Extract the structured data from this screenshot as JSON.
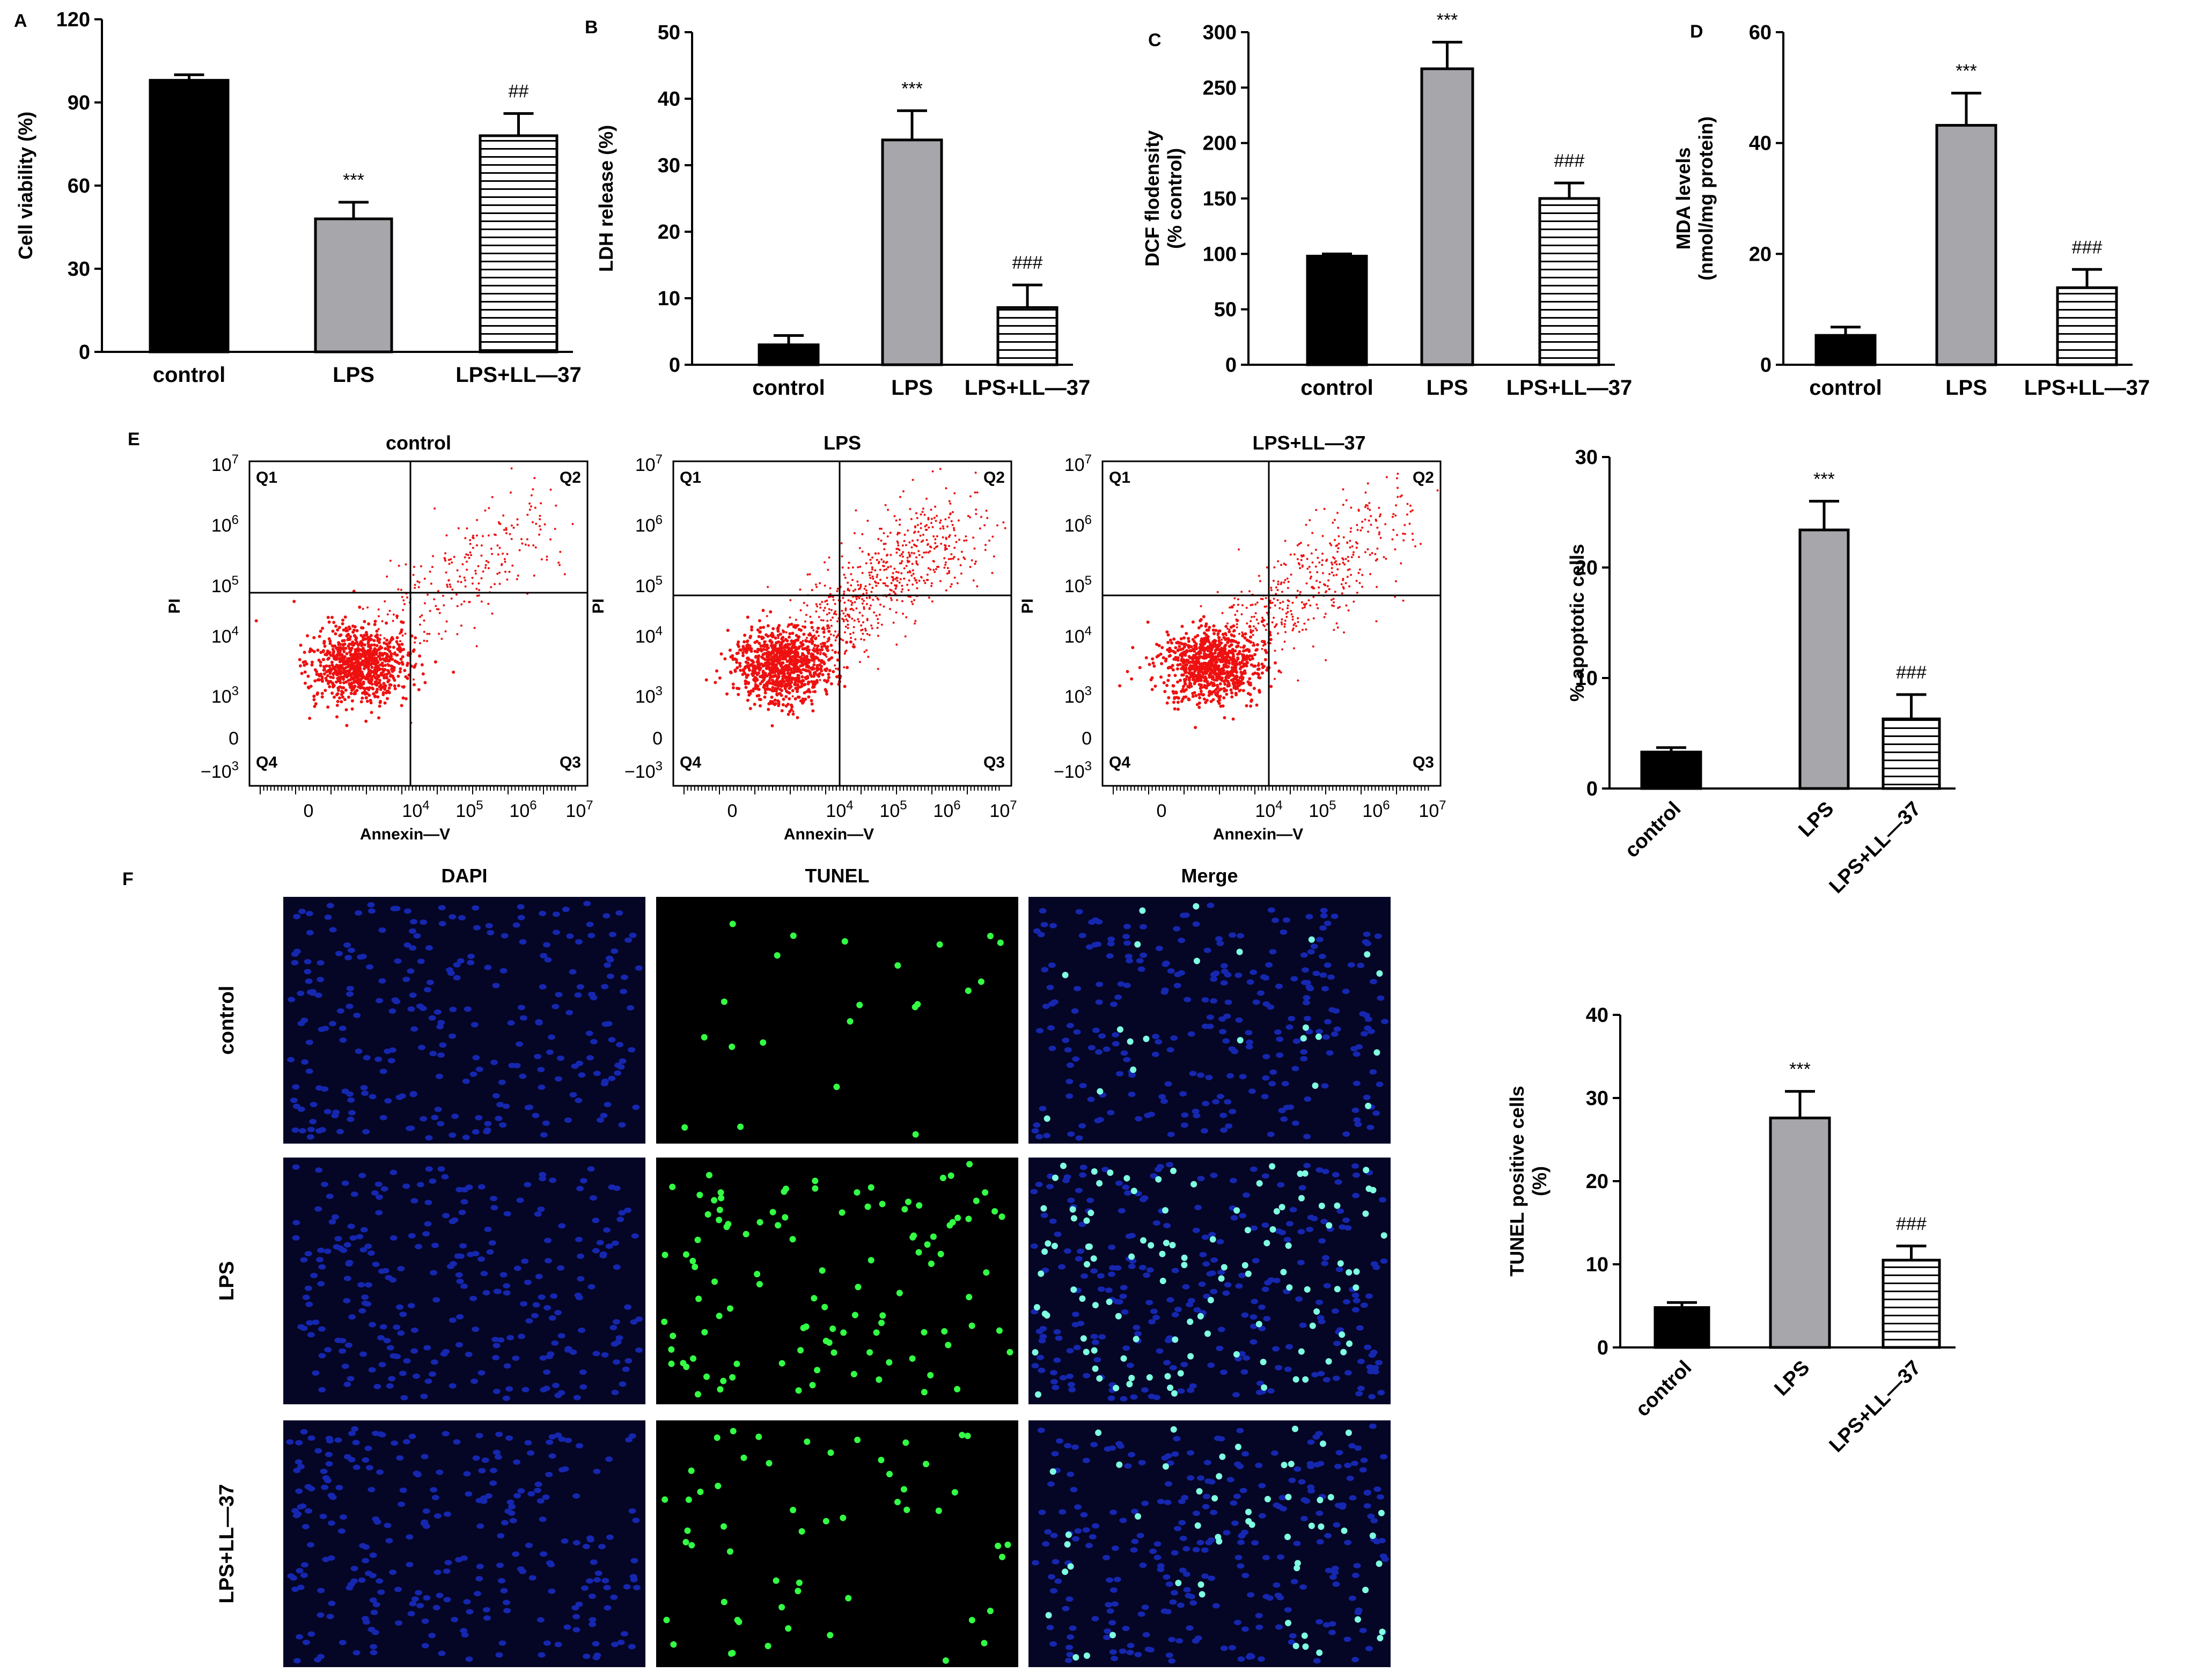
{
  "panel_letters": [
    "A",
    "B",
    "C",
    "D",
    "E",
    "F"
  ],
  "colors": {
    "control": "#000000",
    "lps": "#a6a6ab",
    "hatch": "#000000",
    "scatter": "#ee1111"
  },
  "chart_data": [
    {
      "id": "A",
      "type": "bar",
      "categories": [
        "control",
        "LPS",
        "LPS+LL—37"
      ],
      "values": [
        98,
        48,
        78
      ],
      "errors": [
        2,
        6,
        8
      ],
      "ylabel": "Cell viability (%)",
      "ylim": [
        0,
        120
      ],
      "yticks": [
        0,
        30,
        60,
        90,
        120
      ],
      "annotations": [
        "",
        "***",
        "##"
      ]
    },
    {
      "id": "B",
      "type": "bar",
      "categories": [
        "control",
        "LPS",
        "LPS+LL—37"
      ],
      "values": [
        3,
        33.8,
        8.6
      ],
      "errors": [
        1.4,
        4.4,
        3.4
      ],
      "ylabel": "LDH release (%)",
      "ylim": [
        0,
        50
      ],
      "yticks": [
        0,
        10,
        20,
        30,
        40,
        50
      ],
      "annotations": [
        "",
        "***",
        "###"
      ]
    },
    {
      "id": "C",
      "type": "bar",
      "categories": [
        "control",
        "LPS",
        "LPS+LL—37"
      ],
      "values": [
        98,
        267,
        150
      ],
      "errors": [
        2,
        24,
        14
      ],
      "ylabel": "DCF flodensity",
      "ylabel2": "(% control)",
      "ylim": [
        0,
        300
      ],
      "yticks": [
        0,
        50,
        100,
        150,
        200,
        250,
        300
      ],
      "annotations": [
        "",
        "***",
        "###"
      ]
    },
    {
      "id": "D",
      "type": "bar",
      "categories": [
        "control",
        "LPS",
        "LPS+LL—37"
      ],
      "values": [
        5.3,
        43.2,
        13.9
      ],
      "errors": [
        1.5,
        5.8,
        3.3
      ],
      "ylabel": "MDA levels",
      "ylabel2": "(nmol/mg protein)",
      "ylim": [
        0,
        60
      ],
      "yticks": [
        0,
        20,
        40,
        60
      ],
      "annotations": [
        "",
        "***",
        "###"
      ]
    },
    {
      "id": "E-bar",
      "type": "bar",
      "categories": [
        "control",
        "LPS",
        "LPS+LL—37"
      ],
      "values": [
        3.3,
        23.4,
        6.3
      ],
      "errors": [
        0.4,
        2.6,
        2.2
      ],
      "ylabel": "% apoptotic cells",
      "ylim": [
        0,
        30
      ],
      "yticks": [
        0,
        10,
        20,
        30
      ],
      "annotations": [
        "",
        "***",
        "###"
      ]
    },
    {
      "id": "F-bar",
      "type": "bar",
      "categories": [
        "control",
        "LPS",
        "LPS+LL—37"
      ],
      "values": [
        4.8,
        27.6,
        10.5
      ],
      "errors": [
        0.6,
        3.2,
        1.7
      ],
      "ylabel": "TUNEL positive cells",
      "ylabel2": "(%)",
      "ylim": [
        0,
        40
      ],
      "yticks": [
        0,
        10,
        20,
        30,
        40
      ],
      "annotations": [
        "",
        "***",
        "###"
      ]
    },
    {
      "id": "E-flow",
      "type": "scatter",
      "titles": [
        "control",
        "LPS",
        "LPS+LL—37"
      ],
      "xlabel": "Annexin—V",
      "ylabel": "PI",
      "quadrants": [
        "Q1",
        "Q2",
        "Q3",
        "Q4"
      ],
      "yticks": [
        "10^7",
        "10^6",
        "10^5",
        "10^4",
        "10^3",
        "0",
        "-10^3"
      ],
      "xticks": [
        "0",
        "10^4",
        "10^5",
        "10^6",
        "10^7"
      ]
    }
  ],
  "tunel": {
    "columns": [
      "DAPI",
      "TUNEL",
      "Merge"
    ],
    "rows": [
      "control",
      "LPS",
      "LPS+LL—37"
    ]
  }
}
